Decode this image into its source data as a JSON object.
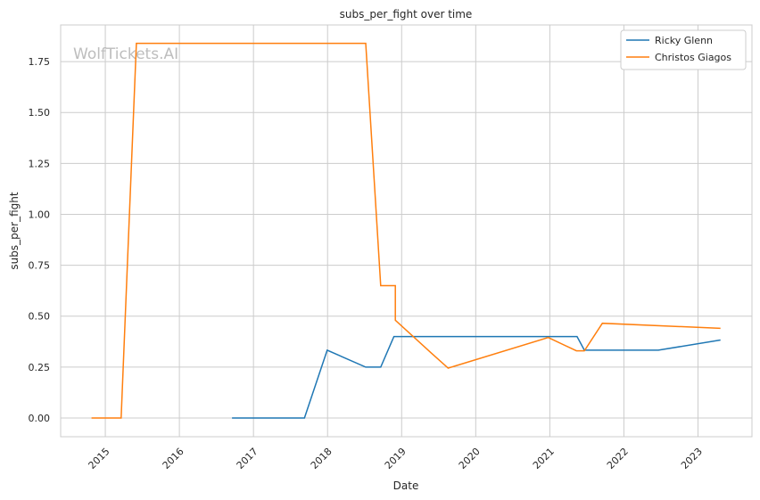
{
  "chart_data": {
    "type": "line",
    "title": "subs_per_fight over time",
    "xlabel": "Date",
    "ylabel": "subs_per_fight",
    "watermark": "WolfTickets.AI",
    "grid": true,
    "legend_position": "top-right",
    "xlim": [
      "2014-05-26",
      "2023-09-24"
    ],
    "ylim": [
      -0.092,
      1.93
    ],
    "x_ticks": [
      "2015",
      "2016",
      "2017",
      "2018",
      "2019",
      "2020",
      "2021",
      "2022",
      "2023"
    ],
    "y_ticks": [
      "0.00",
      "0.25",
      "0.50",
      "0.75",
      "1.00",
      "1.25",
      "1.50",
      "1.75"
    ],
    "series": [
      {
        "name": "Ricky Glenn",
        "color": "#1f77b4",
        "x": [
          "2016-09-17",
          "2017-09-09",
          "2017-12-30",
          "2018-07-08",
          "2018-09-20",
          "2018-11-24",
          "2021-05-15",
          "2021-06-20",
          "2022-06-20",
          "2023-04-22"
        ],
        "y": [
          0,
          0,
          0.333,
          0.25,
          0.25,
          0.4,
          0.4,
          0.333,
          0.333,
          0.383
        ]
      },
      {
        "name": "Christos Giagos",
        "color": "#ff7f0e",
        "x": [
          "2014-10-25",
          "2015-03-20",
          "2015-06-03",
          "2018-07-08",
          "2018-09-20",
          "2018-12-01",
          "2018-12-01",
          "2019-05-26",
          "2019-08-18",
          "2020-12-24",
          "2021-05-12",
          "2021-06-20",
          "2021-09-17",
          "2023-04-22"
        ],
        "y": [
          0,
          0,
          1.84,
          1.84,
          0.65,
          0.65,
          0.48,
          0.32,
          0.245,
          0.395,
          0.33,
          0.33,
          0.465,
          0.44
        ]
      }
    ]
  }
}
